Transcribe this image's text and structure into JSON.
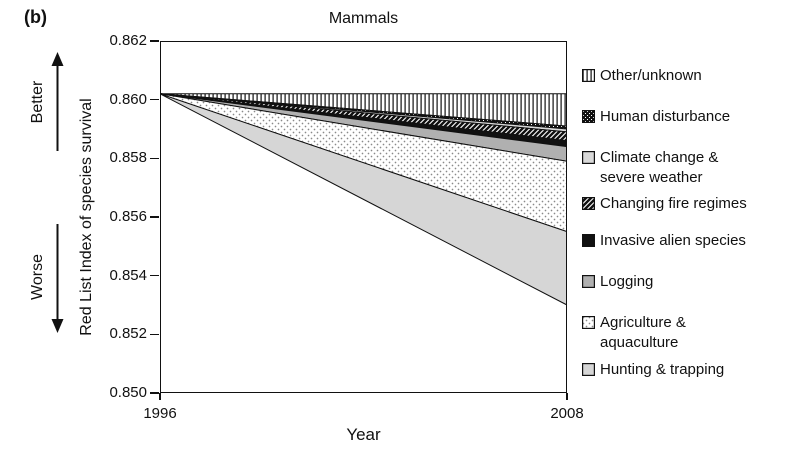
{
  "panel_label": "(b)",
  "title": "Mammals",
  "y_axis": {
    "label": "Red List Index of species survival",
    "better_label": "Better",
    "worse_label": "Worse",
    "ticks": [
      "0.862",
      "0.860",
      "0.858",
      "0.856",
      "0.854",
      "0.852",
      "0.850"
    ]
  },
  "x_axis": {
    "label": "Year",
    "ticks": [
      "1996",
      "2008"
    ]
  },
  "legend": {
    "items": [
      {
        "label_lines": [
          "Other/unknown"
        ],
        "swatch": {
          "type": "pattern",
          "id": "vstripes"
        }
      },
      {
        "label_lines": [
          "Human disturbance"
        ],
        "swatch": {
          "type": "pattern",
          "id": "darkcheck"
        }
      },
      {
        "label_lines": [
          "Climate change &",
          "severe weather"
        ],
        "swatch": {
          "type": "solid",
          "color": "#d9d9d9"
        }
      },
      {
        "label_lines": [
          "Changing fire regimes"
        ],
        "swatch": {
          "type": "pattern",
          "id": "diaghatch"
        }
      },
      {
        "label_lines": [
          "Invasive alien species"
        ],
        "swatch": {
          "type": "solid",
          "color": "#111111"
        }
      },
      {
        "label_lines": [
          "Logging"
        ],
        "swatch": {
          "type": "solid",
          "color": "#b0b0b0"
        }
      },
      {
        "label_lines": [
          "Agriculture &",
          "aquaculture"
        ],
        "swatch": {
          "type": "pattern",
          "id": "dots"
        }
      },
      {
        "label_lines": [
          "Hunting & trapping"
        ],
        "swatch": {
          "type": "solid",
          "color": "#d6d6d6"
        }
      }
    ]
  },
  "chart_data": {
    "type": "area",
    "subtype": "stacked-wedge-threat-attribution",
    "title": "Mammals",
    "xlabel": "Year",
    "ylabel": "Red List Index of species survival",
    "x": [
      1996,
      2008
    ],
    "xlim": [
      1996,
      2008
    ],
    "ylim": [
      0.85,
      0.862
    ],
    "yticks": [
      0.862,
      0.86,
      0.858,
      0.856,
      0.854,
      0.852,
      0.85
    ],
    "grid": false,
    "legend_position": "right",
    "rli_1996": 0.8602,
    "counterfactual_top_2008": 0.8602,
    "observed_rli_2008": 0.853,
    "series": [
      {
        "name": "Other/unknown",
        "upper_2008": 0.8602,
        "lower_2008": 0.8591,
        "decline_contribution": 0.0011
      },
      {
        "name": "Human disturbance",
        "upper_2008": 0.8591,
        "lower_2008": 0.859,
        "decline_contribution": 0.0001
      },
      {
        "name": "Climate change & severe weather",
        "upper_2008": 0.859,
        "lower_2008": 0.8589,
        "decline_contribution": 0.0001
      },
      {
        "name": "Changing fire regimes",
        "upper_2008": 0.8589,
        "lower_2008": 0.8586,
        "decline_contribution": 0.0003
      },
      {
        "name": "Invasive alien species",
        "upper_2008": 0.8586,
        "lower_2008": 0.8584,
        "decline_contribution": 0.0002
      },
      {
        "name": "Logging",
        "upper_2008": 0.8584,
        "lower_2008": 0.8579,
        "decline_contribution": 0.0005
      },
      {
        "name": "Agriculture & aquaculture",
        "upper_2008": 0.8579,
        "lower_2008": 0.8555,
        "decline_contribution": 0.0024
      },
      {
        "name": "Hunting & trapping",
        "upper_2008": 0.8555,
        "lower_2008": 0.853,
        "decline_contribution": 0.0025
      }
    ]
  },
  "colors": {
    "ink": "#111111",
    "logging_gray": "#b0b0b0",
    "hunting_gray": "#d6d6d6",
    "climate_gray": "#d9d9d9",
    "stipple_dot": "#8a8a8a"
  }
}
